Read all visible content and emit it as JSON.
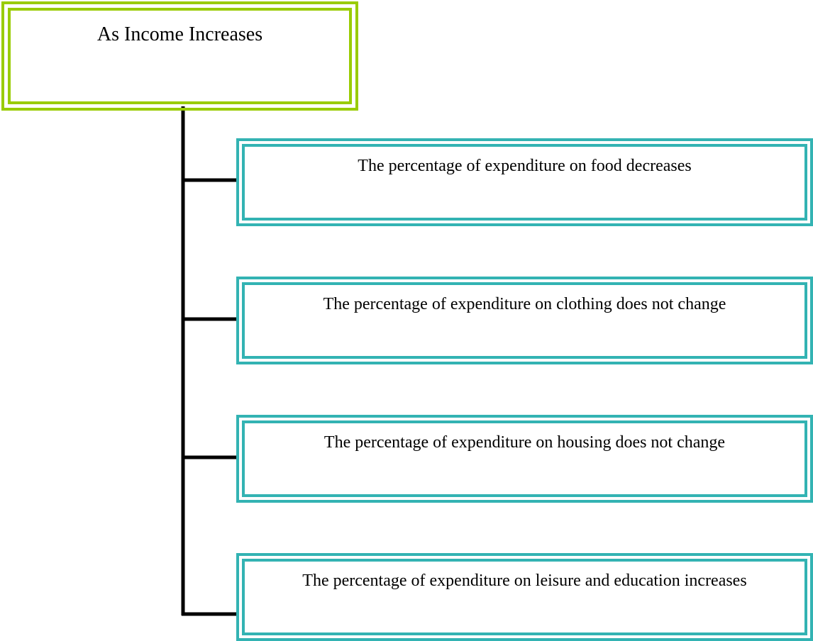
{
  "root": {
    "label": "As Income Increases"
  },
  "nodes": [
    {
      "label": "The percentage of expenditure on food decreases"
    },
    {
      "label": "The percentage of expenditure on clothing does not change"
    },
    {
      "label": "The percentage of expenditure on housing does not change"
    },
    {
      "label": "The percentage of expenditure on leisure and education increases"
    }
  ]
}
